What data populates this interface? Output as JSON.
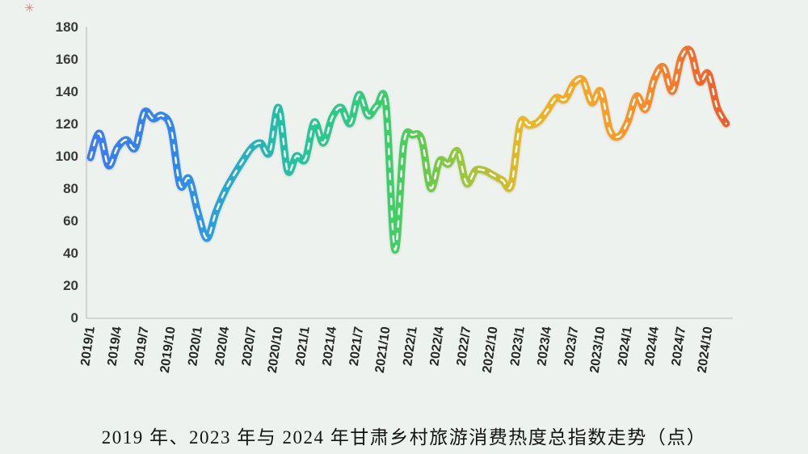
{
  "background_color": "#eef2ee",
  "watermark": {
    "glyph": "✳",
    "color": "#cc2a20"
  },
  "caption": "2019 年、2023 年与 2024 年甘肃乡村旅游消费热度总指数走势（点）",
  "caption_color": "#141414",
  "chart_data": {
    "type": "line",
    "title": "2019 年、2023 年与 2024 年甘肃乡村旅游消费热度总指数走势（点）",
    "xlabel": "",
    "ylabel": "",
    "unit": "点",
    "ylim": [
      0,
      180
    ],
    "y_ticks": [
      0,
      20,
      40,
      60,
      80,
      100,
      120,
      140,
      160,
      180
    ],
    "grid": false,
    "legend_position": "none",
    "axis_color": "#c9cdc9",
    "y_label_color": "#3a3a3a",
    "x_label_color": "#262626",
    "x_tick_labels": [
      "2019/1",
      "2019/4",
      "2019/7",
      "2019/10",
      "2020/1",
      "2020/4",
      "2020/7",
      "2020/10",
      "2021/1",
      "2021/4",
      "2021/7",
      "2021/10",
      "2022/1",
      "2022/4",
      "2022/7",
      "2022/10",
      "2023/1",
      "2023/4",
      "2023/7",
      "2023/10",
      "2024/1",
      "2024/4",
      "2024/7",
      "2024/10"
    ],
    "series": [
      {
        "name": "甘肃乡村旅游消费热度总指数",
        "x": [
          "2019/1",
          "2019/2",
          "2019/3",
          "2019/4",
          "2019/5",
          "2019/6",
          "2019/7",
          "2019/8",
          "2019/9",
          "2019/10",
          "2019/11",
          "2019/12",
          "2020/1",
          "2020/2",
          "2020/3",
          "2020/4",
          "2020/5",
          "2020/6",
          "2020/7",
          "2020/8",
          "2020/9",
          "2020/10",
          "2020/11",
          "2020/12",
          "2021/1",
          "2021/2",
          "2021/3",
          "2021/4",
          "2021/5",
          "2021/6",
          "2021/7",
          "2021/8",
          "2021/9",
          "2021/10",
          "2021/11",
          "2021/12",
          "2022/1",
          "2022/2",
          "2022/3",
          "2022/4",
          "2022/5",
          "2022/6",
          "2022/7",
          "2022/8",
          "2022/9",
          "2022/10",
          "2022/11",
          "2022/12",
          "2023/1",
          "2023/2",
          "2023/3",
          "2023/4",
          "2023/5",
          "2023/6",
          "2023/7",
          "2023/8",
          "2023/9",
          "2023/10",
          "2023/11",
          "2023/12",
          "2024/1",
          "2024/2",
          "2024/3",
          "2024/4",
          "2024/5",
          "2024/6",
          "2024/7",
          "2024/8",
          "2024/9",
          "2024/10",
          "2024/11",
          "2024/12"
        ],
        "values": [
          99,
          114,
          94,
          105,
          110,
          105,
          127,
          123,
          125,
          117,
          82,
          86,
          65,
          49,
          65,
          78,
          88,
          97,
          105,
          108,
          102,
          130,
          91,
          100,
          98,
          121,
          108,
          124,
          130,
          120,
          138,
          125,
          131,
          132,
          42,
          108,
          113,
          110,
          80,
          97,
          95,
          103,
          83,
          91,
          91,
          88,
          85,
          82,
          120,
          119,
          121,
          128,
          136,
          135,
          145,
          147,
          133,
          140,
          116,
          112,
          121,
          137,
          129,
          148,
          155,
          140,
          161,
          165,
          146,
          151,
          130,
          120
        ]
      }
    ],
    "line_style": {
      "stroke_width": 9,
      "center_dash_color": "#ffffff",
      "center_dash_width": 2.4,
      "center_dash_pattern": "7 8.5"
    },
    "line_gradient": [
      {
        "offset": 0.0,
        "color": "#3b7cf2"
      },
      {
        "offset": 0.13,
        "color": "#2f86ee"
      },
      {
        "offset": 0.18,
        "color": "#2d9ae2"
      },
      {
        "offset": 0.23,
        "color": "#28adc6"
      },
      {
        "offset": 0.3,
        "color": "#1fbfa8"
      },
      {
        "offset": 0.35,
        "color": "#27c793"
      },
      {
        "offset": 0.42,
        "color": "#2fcb7d"
      },
      {
        "offset": 0.48,
        "color": "#3fd063"
      },
      {
        "offset": 0.52,
        "color": "#5ecb4d"
      },
      {
        "offset": 0.58,
        "color": "#93c93b"
      },
      {
        "offset": 0.64,
        "color": "#c4bd2d"
      },
      {
        "offset": 0.68,
        "color": "#e9b823"
      },
      {
        "offset": 0.75,
        "color": "#f3ab24"
      },
      {
        "offset": 0.82,
        "color": "#f79d27"
      },
      {
        "offset": 0.89,
        "color": "#f5872c"
      },
      {
        "offset": 0.94,
        "color": "#f2702b"
      },
      {
        "offset": 1.0,
        "color": "#ee5d28"
      }
    ]
  }
}
